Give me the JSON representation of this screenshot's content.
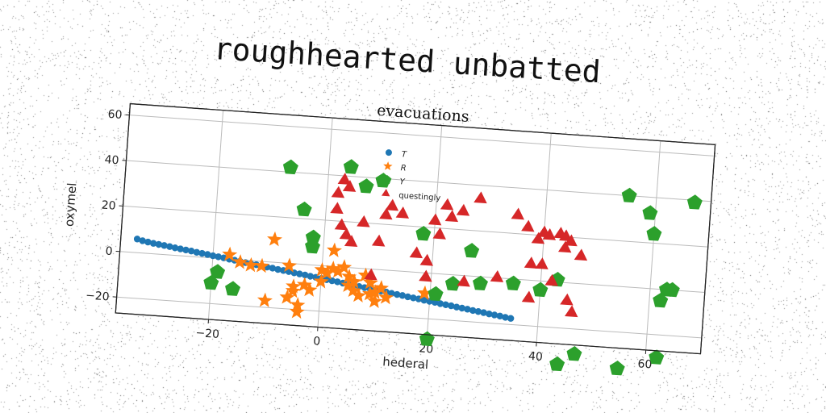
{
  "suptitle": "roughhearted unbatted",
  "chart_data": {
    "type": "scatter",
    "title": "evacuations",
    "xlabel": "hederal",
    "ylabel": "oxymel",
    "xlim": [
      -37,
      70
    ],
    "ylim": [
      -27,
      65
    ],
    "xticks": [
      -20,
      0,
      20,
      40,
      60
    ],
    "yticks": [
      -20,
      0,
      20,
      40,
      60
    ],
    "grid": true,
    "legend_position": "top-center",
    "series": [
      {
        "name": "T",
        "marker": "circle",
        "color": "#1f77b4",
        "points": [
          [
            -34,
            6
          ],
          [
            -33,
            5.4
          ],
          [
            -32,
            5
          ],
          [
            -31,
            4.6
          ],
          [
            -30,
            4.3
          ],
          [
            -29,
            4
          ],
          [
            -28,
            3.7
          ],
          [
            -27,
            3.3
          ],
          [
            -26,
            3
          ],
          [
            -25,
            2.7
          ],
          [
            -24,
            2.4
          ],
          [
            -23,
            2
          ],
          [
            -22,
            1.7
          ],
          [
            -21,
            1.4
          ],
          [
            -20,
            1
          ],
          [
            -19,
            0.7
          ],
          [
            -18,
            0.4
          ],
          [
            -17,
            0
          ],
          [
            -16,
            -0.3
          ],
          [
            -15,
            -0.6
          ],
          [
            -14,
            -1
          ],
          [
            -13,
            -1.3
          ],
          [
            -12,
            -1.6
          ],
          [
            -11,
            -2
          ],
          [
            -10,
            -2.3
          ],
          [
            -9,
            -2.6
          ],
          [
            -8,
            -3
          ],
          [
            -7,
            -3.3
          ],
          [
            -6,
            -3.6
          ],
          [
            -5,
            -4
          ],
          [
            -4,
            -4.3
          ],
          [
            -3,
            -4.6
          ],
          [
            -2,
            -5
          ],
          [
            -1,
            -5.3
          ],
          [
            0,
            -5.6
          ],
          [
            1,
            -6
          ],
          [
            2,
            -6.3
          ],
          [
            3,
            -6.6
          ],
          [
            4,
            -7
          ],
          [
            5,
            -7.3
          ],
          [
            6,
            -7.6
          ],
          [
            7,
            -8
          ],
          [
            8,
            -8.3
          ],
          [
            9,
            -8.6
          ],
          [
            10,
            -9
          ],
          [
            11,
            -9.3
          ],
          [
            12,
            -9.6
          ],
          [
            13,
            -10
          ],
          [
            14,
            -10.3
          ],
          [
            15,
            -10.6
          ],
          [
            16,
            -11
          ],
          [
            17,
            -11.3
          ],
          [
            18,
            -11.6
          ],
          [
            19,
            -12
          ],
          [
            20,
            -12.3
          ],
          [
            21,
            -12.6
          ],
          [
            22,
            -13
          ],
          [
            23,
            -13.3
          ],
          [
            24,
            -13.6
          ],
          [
            25,
            -14
          ],
          [
            26,
            -14.3
          ],
          [
            27,
            -14.6
          ],
          [
            28,
            -15
          ],
          [
            29,
            -15.3
          ],
          [
            30,
            -15.6
          ],
          [
            31,
            -16
          ],
          [
            32,
            -16.3
          ],
          [
            33,
            -16.6
          ],
          [
            34,
            -17
          ],
          [
            35,
            -17.3
          ]
        ]
      },
      {
        "name": "R",
        "marker": "star",
        "color": "#ff7f0e",
        "points": [
          [
            -17,
            2
          ],
          [
            -15,
            -1
          ],
          [
            -13,
            -2
          ],
          [
            -11,
            -2
          ],
          [
            -10,
            -17
          ],
          [
            -9,
            10
          ],
          [
            -6,
            -1
          ],
          [
            -6,
            -15
          ],
          [
            -5,
            -10
          ],
          [
            -5,
            -12
          ],
          [
            -4,
            -18
          ],
          [
            -4,
            -21
          ],
          [
            -3,
            -9
          ],
          [
            -2,
            -11
          ],
          [
            0,
            -2
          ],
          [
            0,
            -7
          ],
          [
            1,
            -3
          ],
          [
            2,
            -1
          ],
          [
            2,
            7
          ],
          [
            3,
            -2
          ],
          [
            4,
            0
          ],
          [
            5,
            -4
          ],
          [
            5,
            -8
          ],
          [
            6,
            -6
          ],
          [
            6,
            -10
          ],
          [
            7,
            -12
          ],
          [
            8,
            -3
          ],
          [
            9,
            -6
          ],
          [
            9,
            -11
          ],
          [
            10,
            -14
          ],
          [
            10,
            -10
          ],
          [
            11,
            -8
          ],
          [
            12,
            -12
          ],
          [
            19,
            -9
          ]
        ]
      },
      {
        "name": "Y",
        "marker": "pentagon",
        "color": "#2ca02c",
        "points": [
          [
            -20,
            -11
          ],
          [
            -19,
            -6
          ],
          [
            -16,
            -13
          ],
          [
            -7,
            42
          ],
          [
            -4,
            24
          ],
          [
            -2,
            8
          ],
          [
            -2,
            12
          ],
          [
            4,
            44
          ],
          [
            7,
            36
          ],
          [
            10,
            39
          ],
          [
            18,
            17
          ],
          [
            20,
            -29
          ],
          [
            21,
            -9
          ],
          [
            24,
            -4
          ],
          [
            27,
            11
          ],
          [
            29,
            -3
          ],
          [
            35,
            -2
          ],
          [
            40,
            -4
          ],
          [
            43,
            1
          ],
          [
            44,
            -36
          ],
          [
            47,
            -31
          ],
          [
            55,
            40
          ],
          [
            55,
            -36
          ],
          [
            59,
            33
          ],
          [
            60,
            24
          ],
          [
            62,
            -5
          ],
          [
            62,
            -30
          ],
          [
            63,
            0
          ],
          [
            64,
            0
          ],
          [
            67,
            39
          ]
        ]
      },
      {
        "name": "questingly",
        "marker": "triangle",
        "color": "#d62728",
        "points": [
          [
            2,
            25
          ],
          [
            2,
            32
          ],
          [
            3,
            18
          ],
          [
            3,
            38
          ],
          [
            4,
            35
          ],
          [
            4,
            14
          ],
          [
            5,
            11
          ],
          [
            7,
            20
          ],
          [
            9,
            -3
          ],
          [
            10,
            12
          ],
          [
            11,
            24
          ],
          [
            12,
            28
          ],
          [
            14,
            25
          ],
          [
            17,
            8
          ],
          [
            19,
            5
          ],
          [
            19,
            -2
          ],
          [
            20,
            23
          ],
          [
            21,
            17
          ],
          [
            22,
            30
          ],
          [
            23,
            25
          ],
          [
            25,
            28
          ],
          [
            26,
            -3
          ],
          [
            28,
            34
          ],
          [
            32,
            0
          ],
          [
            35,
            28
          ],
          [
            37,
            23
          ],
          [
            38,
            7
          ],
          [
            38,
            -8
          ],
          [
            39,
            18
          ],
          [
            40,
            21
          ],
          [
            40,
            7
          ],
          [
            41,
            20
          ],
          [
            42,
            0
          ],
          [
            43,
            21
          ],
          [
            44,
            20
          ],
          [
            44,
            15
          ],
          [
            45,
            18
          ],
          [
            45,
            -8
          ],
          [
            46,
            -13
          ],
          [
            47,
            12
          ]
        ]
      }
    ]
  }
}
